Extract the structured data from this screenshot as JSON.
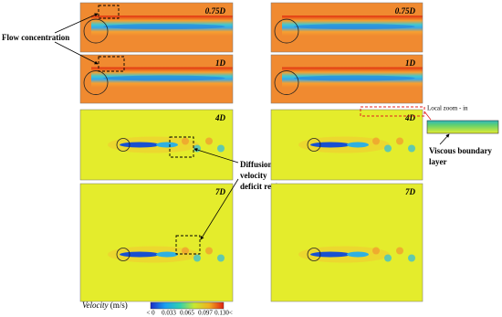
{
  "left_panels": [
    "0.75D",
    "1D",
    "4D",
    "7D"
  ],
  "right_panels": [
    "0.75D",
    "1D",
    "4D",
    "7D"
  ],
  "annotations": {
    "flow_concentration": "Flow concentration",
    "diffusion": [
      "Diffusion of",
      "velocity",
      "deficit region"
    ],
    "local_zoom": "Local zoom - in",
    "viscous_boundary_layer": [
      "Viscous boundary",
      "layer"
    ]
  },
  "colorbar": {
    "label": "Velocity",
    "unit": "(m/s)",
    "ticks": [
      "< 0",
      "0.033",
      "0.065",
      "0.097",
      "0.130<"
    ]
  }
}
